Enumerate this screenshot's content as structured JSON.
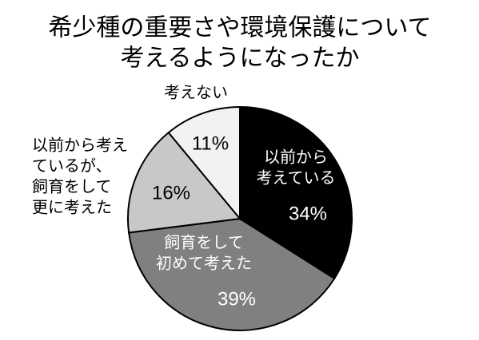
{
  "chart_data": {
    "type": "pie",
    "title": [
      "希少種の重要さや環境保護について",
      "考えるようになったか"
    ],
    "categories": [
      [
        "以前から",
        "考えている"
      ],
      [
        "飼育をして",
        "初めて考えた"
      ],
      [
        "以前から考え",
        "ているが、",
        "飼育をして",
        "更に考えた"
      ],
      [
        "考えない"
      ]
    ],
    "values": [
      34,
      39,
      16,
      11
    ],
    "value_labels": [
      "34%",
      "39%",
      "16%",
      "11%"
    ],
    "colors": [
      "#000000",
      "#808080",
      "#c8c8c8",
      "#f2f2f2"
    ]
  }
}
